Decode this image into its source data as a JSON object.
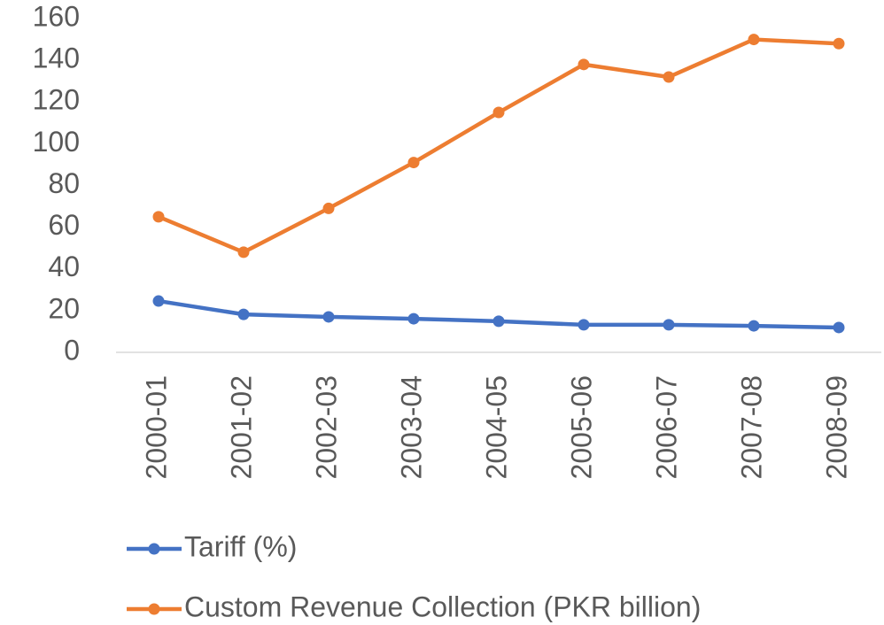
{
  "chart_data": {
    "type": "line",
    "categories": [
      "2000-01",
      "2001-02",
      "2002-03",
      "2003-04",
      "2004-05",
      "2005-06",
      "2006-07",
      "2007-08",
      "2008-09"
    ],
    "series": [
      {
        "name": "Tariff (%)",
        "color": "#4472c4",
        "values": [
          24.6,
          18.2,
          17,
          16.1,
          14.9,
          13.2,
          13.2,
          12.7,
          11.9
        ]
      },
      {
        "name": "Custom Revenue Collection (PKR billion)",
        "color": "#ed7d31",
        "values": [
          65,
          48,
          69,
          91,
          115,
          138,
          132,
          150,
          148
        ]
      }
    ],
    "ylim": [
      0,
      160
    ],
    "yticks": [
      0,
      20,
      40,
      60,
      80,
      100,
      120,
      140,
      160
    ],
    "grid": false
  }
}
